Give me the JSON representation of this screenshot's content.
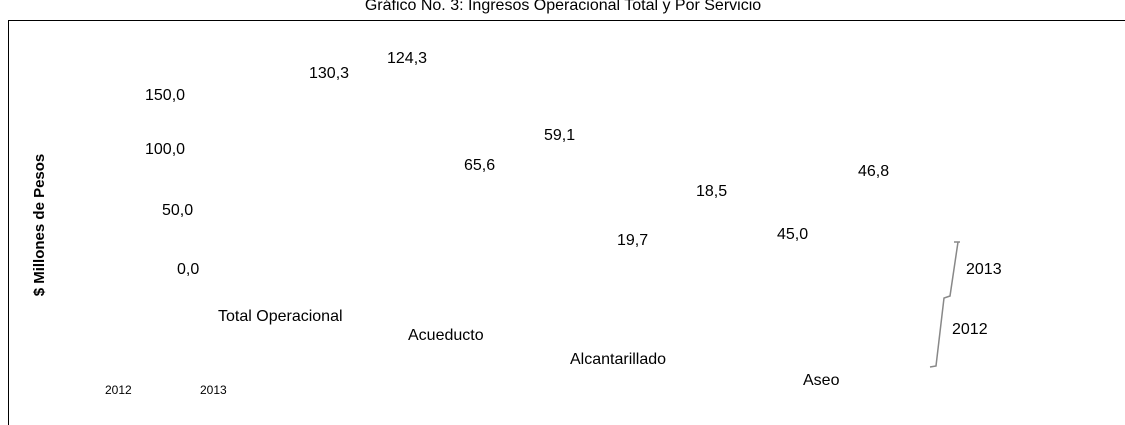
{
  "chart_data": {
    "type": "bar",
    "title": "Gráfico No. 3: Ingresos Operacional Total y Por Servicio",
    "ylabel": "$ Millones de Pesos",
    "categories": [
      "Total Operacional",
      "Acueducto",
      "Alcantarillado",
      "Aseo"
    ],
    "series": [
      {
        "name": "2012",
        "values": [
          130.3,
          65.6,
          19.7,
          45.0
        ],
        "value_labels": [
          "130,3",
          "65,6",
          "19,7",
          "45,0"
        ]
      },
      {
        "name": "2013",
        "values": [
          124.3,
          59.1,
          18.5,
          46.8
        ],
        "value_labels": [
          "124,3",
          "59,1",
          "18,5",
          "46,8"
        ]
      }
    ],
    "ylim": [
      0,
      150
    ],
    "yticks": [
      {
        "value": 0,
        "label": "0,0"
      },
      {
        "value": 50,
        "label": "50,0"
      },
      {
        "value": 100,
        "label": "100,0"
      },
      {
        "value": 150,
        "label": "150,0"
      }
    ],
    "legend": "right"
  }
}
